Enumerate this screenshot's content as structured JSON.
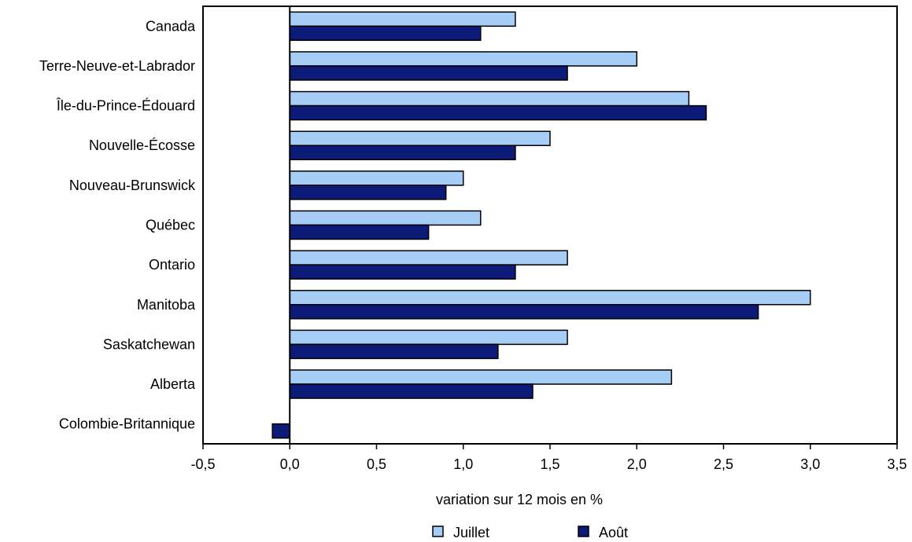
{
  "chart_data": {
    "type": "bar",
    "orientation": "horizontal",
    "categories": [
      "Canada",
      "Terre-Neuve-et-Labrador",
      "Île-du-Prince-Édouard",
      "Nouvelle-Écosse",
      "Nouveau-Brunswick",
      "Québec",
      "Ontario",
      "Manitoba",
      "Saskatchewan",
      "Alberta",
      "Colombie-Britannique"
    ],
    "series": [
      {
        "name": "Juillet",
        "color": "#a6cdf5",
        "values": [
          1.3,
          2.0,
          2.3,
          1.5,
          1.0,
          1.1,
          1.6,
          3.0,
          1.6,
          2.2,
          0.0
        ]
      },
      {
        "name": "Août",
        "color": "#0c1a78",
        "values": [
          1.1,
          1.6,
          2.4,
          1.3,
          0.9,
          0.8,
          1.3,
          2.7,
          1.2,
          1.4,
          -0.1
        ]
      }
    ],
    "xlabel": "variation sur 12 mois  en %",
    "xlim": [
      -0.5,
      3.5
    ],
    "xticks": [
      -0.5,
      0.0,
      0.5,
      1.0,
      1.5,
      2.0,
      2.5,
      3.0,
      3.5
    ],
    "xtick_labels": [
      "-0,5",
      "0,0",
      "0,5",
      "1,0",
      "1,5",
      "2,0",
      "2,5",
      "3,0",
      "3,5"
    ],
    "grid": false,
    "legend": "bottom"
  }
}
